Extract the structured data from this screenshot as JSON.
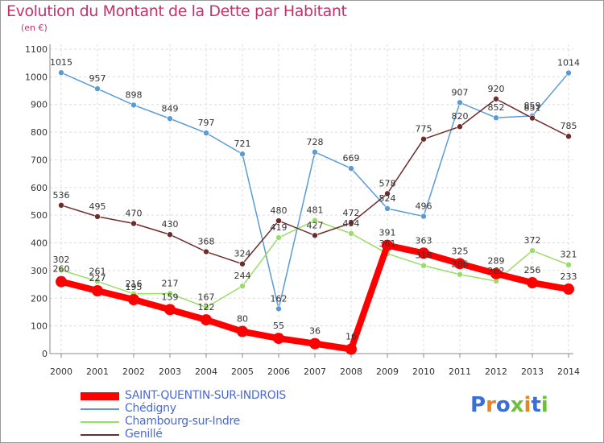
{
  "header": {
    "title": "Evolution du Montant de la Dette par Habitant",
    "unit": "(en €)"
  },
  "logo": {
    "text": "Proxiti",
    "colors": [
      "#3a6fd8",
      "#e8851f",
      "#3a6fd8",
      "#6fbf3a",
      "#e8851f",
      "#3a6fd8",
      "#6fbf3a"
    ]
  },
  "chart_data": {
    "type": "line",
    "title": "Evolution du Montant de la Dette par Habitant",
    "ylabel": "(en €)",
    "xlabel": "",
    "x": [
      "2000",
      "2001",
      "2002",
      "2003",
      "2004",
      "2005",
      "2006",
      "2007",
      "2008",
      "2009",
      "2010",
      "2011",
      "2012",
      "2013",
      "2014"
    ],
    "ylim": [
      0,
      1100
    ],
    "yticks": [
      0,
      100,
      200,
      300,
      400,
      500,
      600,
      700,
      800,
      900,
      1000,
      1100
    ],
    "grid": "horizontal dashed",
    "legend": "bottom-left",
    "series": [
      {
        "name": "Chédigny",
        "color": "#5b9bd5",
        "values": [
          1015,
          957,
          898,
          849,
          797,
          721,
          162,
          728,
          669,
          524,
          496,
          907,
          852,
          859,
          1014
        ]
      },
      {
        "name": "Chambourg-sur-Indre",
        "color": "#99dd66",
        "values": [
          302,
          261,
          216,
          217,
          167,
          244,
          419,
          481,
          434,
          361,
          318,
          286,
          262,
          372,
          321
        ]
      },
      {
        "name": "Genillé",
        "color": "#6e2b2b",
        "values": [
          536,
          495,
          470,
          430,
          368,
          324,
          480,
          427,
          472,
          578,
          775,
          820,
          920,
          851,
          785
        ]
      },
      {
        "name": "SAINT-QUENTIN-SUR-INDROIS",
        "color": "#ff0000",
        "values": [
          260,
          227,
          195,
          159,
          122,
          80,
          55,
          36,
          16,
          391,
          363,
          325,
          289,
          256,
          233
        ]
      }
    ],
    "legend_order": [
      "SAINT-QUENTIN-SUR-INDROIS",
      "Chédigny",
      "Chambourg-sur-Indre",
      "Genillé"
    ]
  }
}
